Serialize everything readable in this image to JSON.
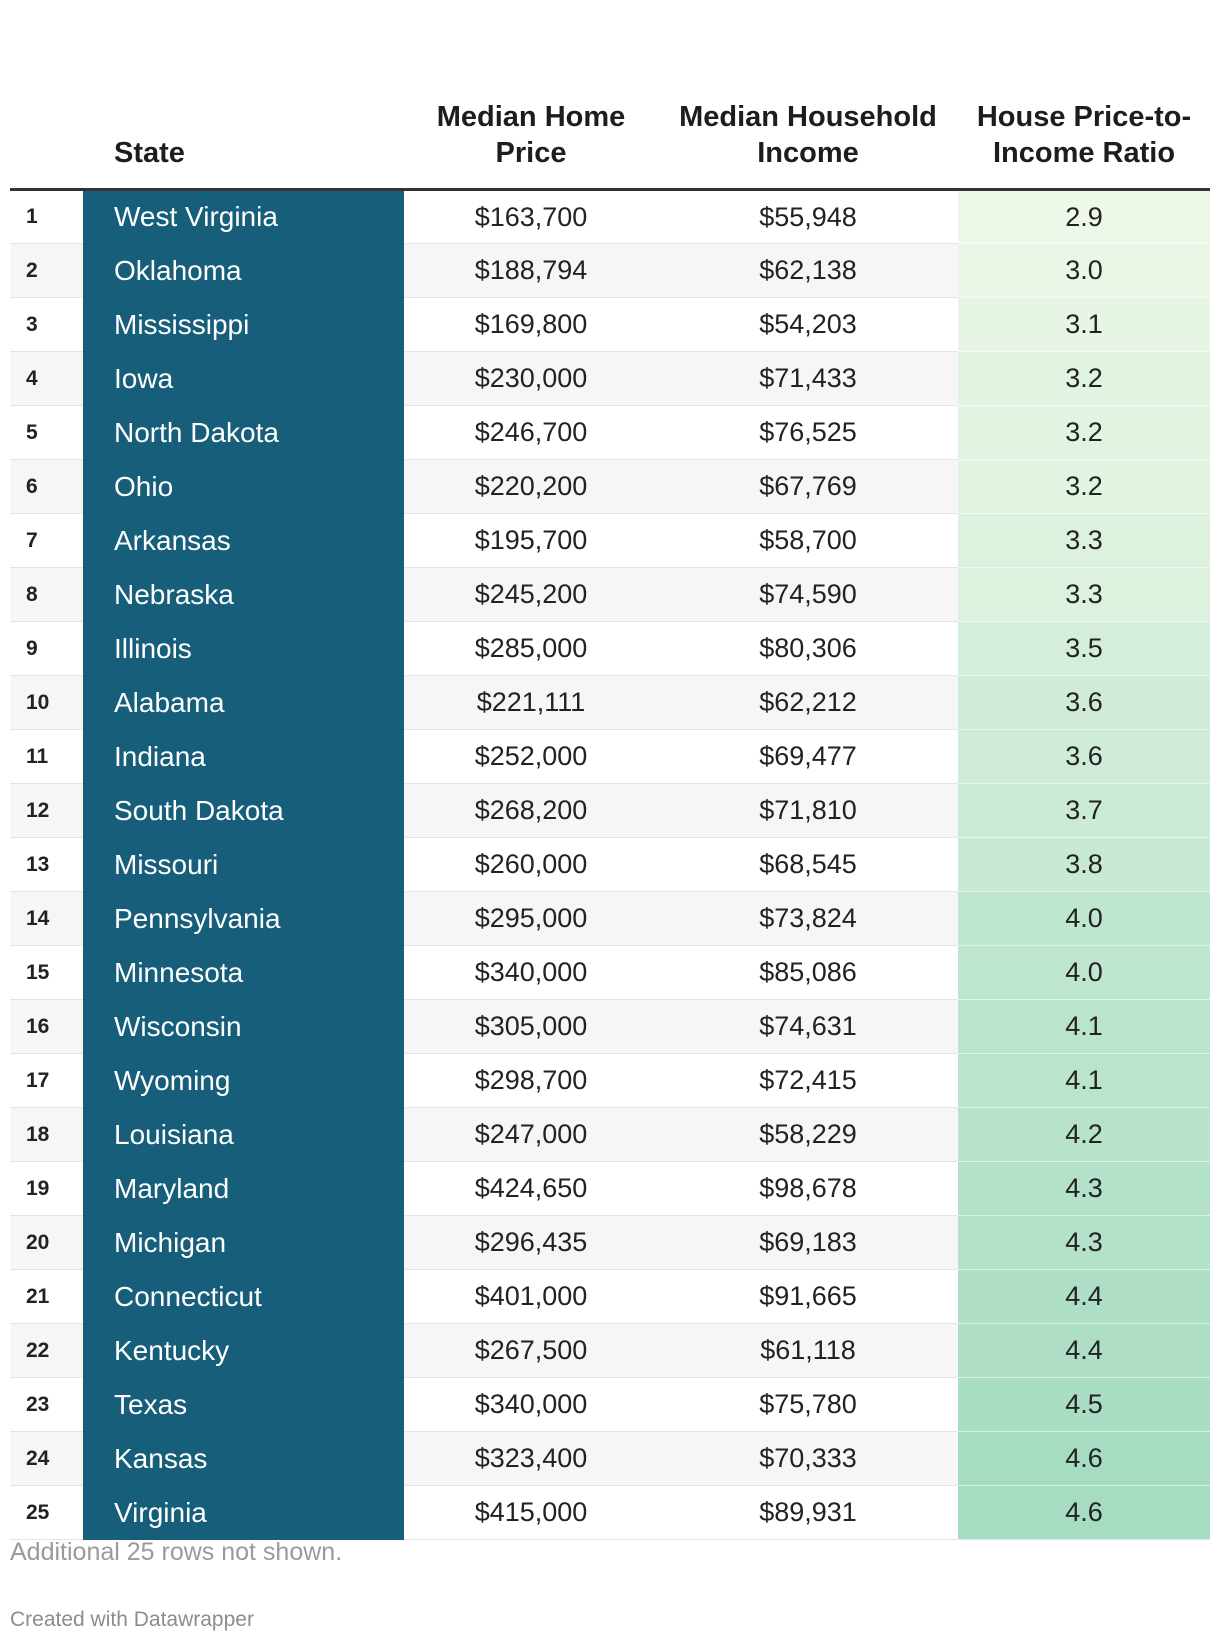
{
  "chart_data": {
    "type": "table",
    "columns": {
      "rank": "",
      "state": "State",
      "home_price": "Median Home Price",
      "income": "Median Household Income",
      "ratio": "House Price-to-Income Ratio"
    },
    "rows": [
      {
        "rank": "1",
        "state": "West Virginia",
        "home_price": "$163,700",
        "income": "$55,948",
        "ratio": "2.9"
      },
      {
        "rank": "2",
        "state": "Oklahoma",
        "home_price": "$188,794",
        "income": "$62,138",
        "ratio": "3.0"
      },
      {
        "rank": "3",
        "state": "Mississippi",
        "home_price": "$169,800",
        "income": "$54,203",
        "ratio": "3.1"
      },
      {
        "rank": "4",
        "state": "Iowa",
        "home_price": "$230,000",
        "income": "$71,433",
        "ratio": "3.2"
      },
      {
        "rank": "5",
        "state": "North Dakota",
        "home_price": "$246,700",
        "income": "$76,525",
        "ratio": "3.2"
      },
      {
        "rank": "6",
        "state": "Ohio",
        "home_price": "$220,200",
        "income": "$67,769",
        "ratio": "3.2"
      },
      {
        "rank": "7",
        "state": "Arkansas",
        "home_price": "$195,700",
        "income": "$58,700",
        "ratio": "3.3"
      },
      {
        "rank": "8",
        "state": "Nebraska",
        "home_price": "$245,200",
        "income": "$74,590",
        "ratio": "3.3"
      },
      {
        "rank": "9",
        "state": "Illinois",
        "home_price": "$285,000",
        "income": "$80,306",
        "ratio": "3.5"
      },
      {
        "rank": "10",
        "state": "Alabama",
        "home_price": "$221,111",
        "income": "$62,212",
        "ratio": "3.6"
      },
      {
        "rank": "11",
        "state": "Indiana",
        "home_price": "$252,000",
        "income": "$69,477",
        "ratio": "3.6"
      },
      {
        "rank": "12",
        "state": "South Dakota",
        "home_price": "$268,200",
        "income": "$71,810",
        "ratio": "3.7"
      },
      {
        "rank": "13",
        "state": "Missouri",
        "home_price": "$260,000",
        "income": "$68,545",
        "ratio": "3.8"
      },
      {
        "rank": "14",
        "state": "Pennsylvania",
        "home_price": "$295,000",
        "income": "$73,824",
        "ratio": "4.0"
      },
      {
        "rank": "15",
        "state": "Minnesota",
        "home_price": "$340,000",
        "income": "$85,086",
        "ratio": "4.0"
      },
      {
        "rank": "16",
        "state": "Wisconsin",
        "home_price": "$305,000",
        "income": "$74,631",
        "ratio": "4.1"
      },
      {
        "rank": "17",
        "state": "Wyoming",
        "home_price": "$298,700",
        "income": "$72,415",
        "ratio": "4.1"
      },
      {
        "rank": "18",
        "state": "Louisiana",
        "home_price": "$247,000",
        "income": "$58,229",
        "ratio": "4.2"
      },
      {
        "rank": "19",
        "state": "Maryland",
        "home_price": "$424,650",
        "income": "$98,678",
        "ratio": "4.3"
      },
      {
        "rank": "20",
        "state": "Michigan",
        "home_price": "$296,435",
        "income": "$69,183",
        "ratio": "4.3"
      },
      {
        "rank": "21",
        "state": "Connecticut",
        "home_price": "$401,000",
        "income": "$91,665",
        "ratio": "4.4"
      },
      {
        "rank": "22",
        "state": "Kentucky",
        "home_price": "$267,500",
        "income": "$61,118",
        "ratio": "4.4"
      },
      {
        "rank": "23",
        "state": "Texas",
        "home_price": "$340,000",
        "income": "$75,780",
        "ratio": "4.5"
      },
      {
        "rank": "24",
        "state": "Kansas",
        "home_price": "$323,400",
        "income": "$70,333",
        "ratio": "4.6"
      },
      {
        "rank": "25",
        "state": "Virginia",
        "home_price": "$415,000",
        "income": "$89,931",
        "ratio": "4.6"
      }
    ],
    "ratio_color_range": [
      2.9,
      4.6
    ],
    "ratio_colors": {
      "low": "#eef8e8",
      "high": "#a6dcc2"
    },
    "state_color": "#165e7a"
  },
  "footer": {
    "note": "Additional 25 rows not shown.",
    "credit": "Created with Datawrapper"
  }
}
